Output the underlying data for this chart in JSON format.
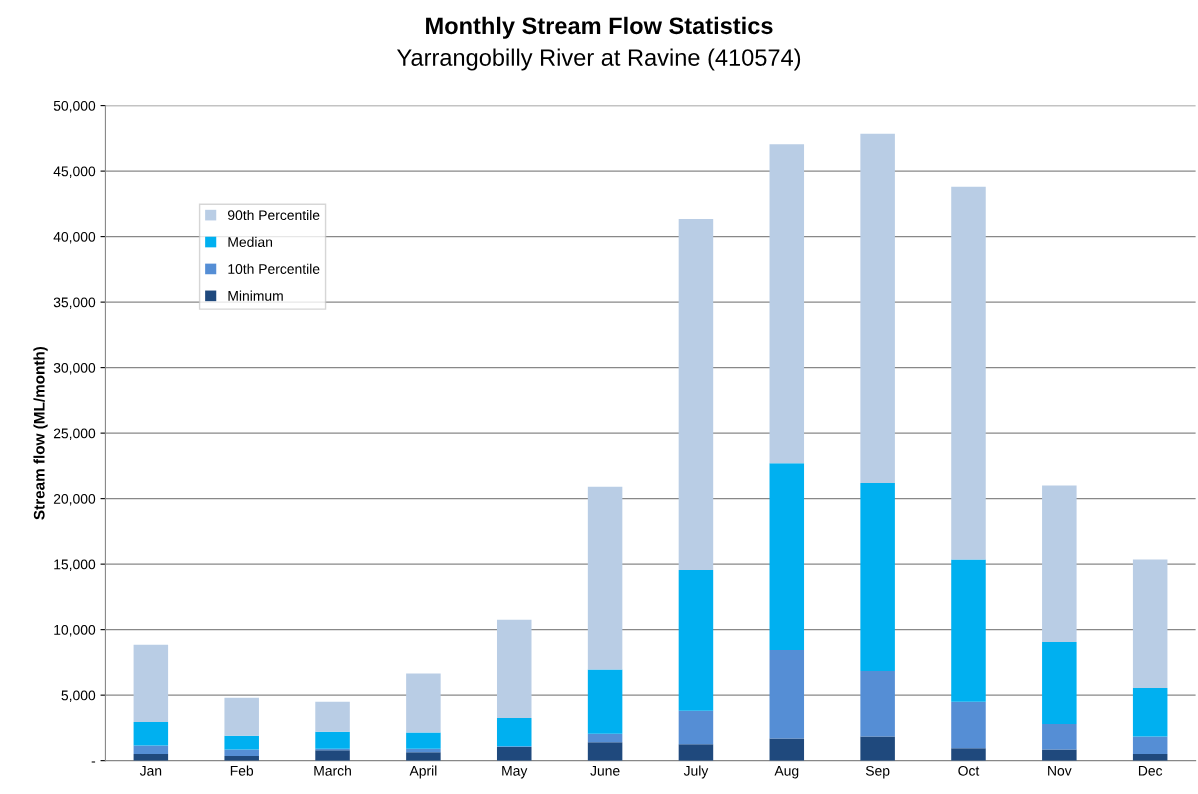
{
  "chart_data": {
    "type": "bar",
    "stacked": true,
    "title": "Monthly Stream Flow Statistics",
    "subtitle": "Yarrangobilly River at Ravine (410574)",
    "ylabel": "Stream flow (ML/month)",
    "categories": [
      "Jan",
      "Feb",
      "March",
      "April",
      "May",
      "June",
      "July",
      "Aug",
      "Sep",
      "Oct",
      "Nov",
      "Dec"
    ],
    "series": [
      {
        "name": "Minimum",
        "color": "#1f497d",
        "values": [
          500,
          350,
          800,
          650,
          1050,
          1400,
          1250,
          1700,
          1850,
          950,
          850,
          500
        ]
      },
      {
        "name": "10th Percentile",
        "color": "#558ed5",
        "values": [
          650,
          500,
          100,
          250,
          50,
          650,
          2550,
          6750,
          5000,
          3550,
          1950,
          1350
        ]
      },
      {
        "name": "Median",
        "color": "#00b0f0",
        "values": [
          1800,
          1050,
          1300,
          1250,
          2150,
          4900,
          10750,
          14250,
          14350,
          10850,
          6250,
          3700
        ]
      },
      {
        "name": "90th Percentile",
        "color": "#b9cde5",
        "values": [
          5900,
          2900,
          2300,
          4500,
          7500,
          13950,
          26800,
          24350,
          26650,
          28450,
          11950,
          9800
        ]
      }
    ],
    "ylim": [
      0,
      50000
    ],
    "yticks": [
      {
        "value": 0,
        "label": "-"
      },
      {
        "value": 5000,
        "label": "5,000"
      },
      {
        "value": 10000,
        "label": "10,000"
      },
      {
        "value": 15000,
        "label": "15,000"
      },
      {
        "value": 20000,
        "label": "20,000"
      },
      {
        "value": 25000,
        "label": "25,000"
      },
      {
        "value": 30000,
        "label": "30,000"
      },
      {
        "value": 35000,
        "label": "35,000"
      },
      {
        "value": 40000,
        "label": "40,000"
      },
      {
        "value": 45000,
        "label": "45,000"
      },
      {
        "value": 50000,
        "label": "50,000"
      }
    ],
    "grid": "y",
    "legend": "top left"
  }
}
